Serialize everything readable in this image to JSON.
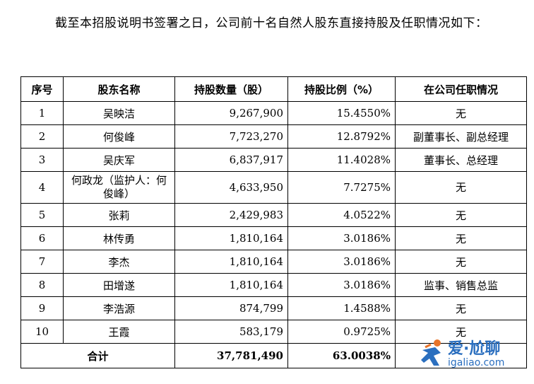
{
  "intro": "截至本招股说明书签署之日，公司前十名自然人股东直接持股及任职情况如下：",
  "table": {
    "headers": [
      "序号",
      "股东名称",
      "持股数量（股）",
      "持股比例（%）",
      "在公司任职情况"
    ],
    "rows": [
      [
        "1",
        "吴映洁",
        "9,267,900",
        "15.4550%",
        "无"
      ],
      [
        "2",
        "何俊峰",
        "7,723,270",
        "12.8792%",
        "副董事长、副总经理"
      ],
      [
        "3",
        "吴庆军",
        "6,837,917",
        "11.4028%",
        "董事长、总经理"
      ],
      [
        "4",
        "何政龙（监护人：何俊峰）",
        "4,633,950",
        "7.7275%",
        "无"
      ],
      [
        "5",
        "张莉",
        "2,429,983",
        "4.0522%",
        "无"
      ],
      [
        "6",
        "林传勇",
        "1,810,164",
        "3.0186%",
        "无"
      ],
      [
        "7",
        "李杰",
        "1,810,164",
        "3.0186%",
        "无"
      ],
      [
        "8",
        "田增遂",
        "1,810,164",
        "3.0186%",
        "监事、销售总监"
      ],
      [
        "9",
        "李浩源",
        "874,799",
        "1.4588%",
        "无"
      ],
      [
        "10",
        "王霞",
        "583,179",
        "0.9725%",
        "无"
      ]
    ],
    "total": {
      "label": "合计",
      "quantity": "37,781,490",
      "ratio": "63.0038%",
      "position": ""
    }
  },
  "watermark": {
    "text": "爱·尬聊",
    "url": "igaliao.com",
    "color": "#2b6fbf",
    "accent": "#e8742a"
  }
}
